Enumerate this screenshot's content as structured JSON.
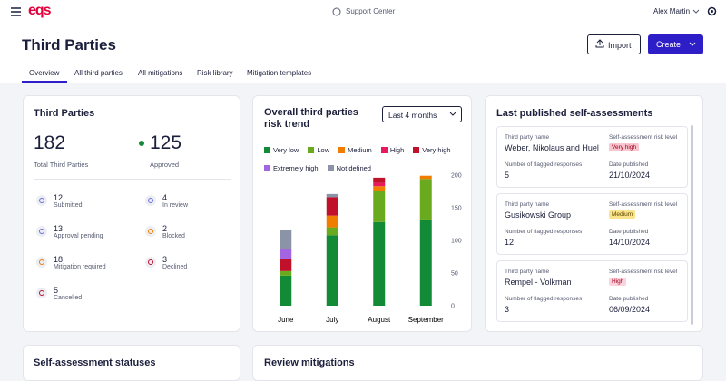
{
  "header": {
    "logo": "eqs",
    "support": "Support Center",
    "user": "Alex Martin"
  },
  "page": {
    "title": "Third Parties",
    "import": "Import",
    "create": "Create",
    "tabs": [
      "Overview",
      "All third parties",
      "All mitigations",
      "Risk library",
      "Mitigation templates"
    ]
  },
  "summary": {
    "title": "Third Parties",
    "total": 182,
    "total_label": "Total Third Parties",
    "approved": 125,
    "approved_label": "Approved",
    "statuses": [
      {
        "count": 12,
        "label": "Submitted"
      },
      {
        "count": 4,
        "label": "In review"
      },
      {
        "count": 13,
        "label": "Approval pending"
      },
      {
        "count": 2,
        "label": "Blocked"
      },
      {
        "count": 18,
        "label": "Mitigation required"
      },
      {
        "count": 3,
        "label": "Declined"
      },
      {
        "count": 5,
        "label": "Cancelled"
      }
    ]
  },
  "chart_data": {
    "type": "bar",
    "stacked": true,
    "title": "Overall third parties risk trend",
    "period": "Last 4 months",
    "categories": [
      "June",
      "July",
      "August",
      "September"
    ],
    "series": [
      {
        "name": "Very low",
        "color": "#138a36",
        "values": [
          46,
          108,
          128,
          132
        ]
      },
      {
        "name": "Low",
        "color": "#6aaa1e",
        "values": [
          7,
          12,
          47,
          62
        ]
      },
      {
        "name": "Medium",
        "color": "#f07c00",
        "values": [
          0,
          18,
          8,
          5
        ]
      },
      {
        "name": "High",
        "color": "#e8195e",
        "values": [
          0,
          0,
          5,
          0
        ]
      },
      {
        "name": "Very high",
        "color": "#c0102a",
        "values": [
          19,
          28,
          8,
          0
        ]
      },
      {
        "name": "Extremely high",
        "color": "#a366e0",
        "values": [
          15,
          0,
          0,
          0
        ]
      },
      {
        "name": "Not defined",
        "color": "#8a94a6",
        "values": [
          29,
          5,
          0,
          0
        ]
      }
    ],
    "ylim": [
      0,
      200
    ],
    "yticks": [
      0,
      50,
      100,
      150,
      200
    ]
  },
  "assessments": {
    "title": "Last published self-assessments",
    "labels": {
      "name": "Third party name",
      "level": "Self-assessment risk level",
      "flagged": "Number of flagged responses",
      "date": "Date published"
    },
    "items": [
      {
        "name": "Weber, Nikolaus and Huel",
        "level": "Very high",
        "flagged": 5,
        "date": "21/10/2024"
      },
      {
        "name": "Gusikowski Group",
        "level": "Medium",
        "flagged": 12,
        "date": "14/10/2024"
      },
      {
        "name": "Rempel - Volkman",
        "level": "High",
        "flagged": 3,
        "date": "06/09/2024"
      }
    ]
  },
  "bottom": {
    "statuses_title": "Self-assessment statuses",
    "mitigations_title": "Review mitigations"
  }
}
